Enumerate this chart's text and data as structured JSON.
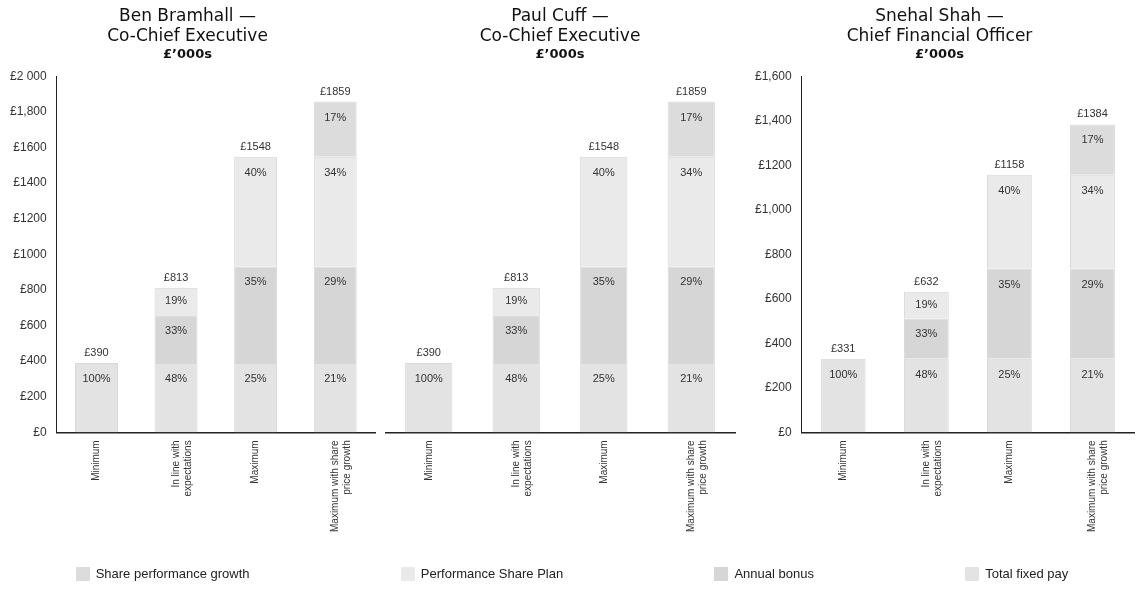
{
  "chart_data": [
    {
      "type": "bar",
      "title": "Ben Bramhall —\nCo-Chief Executive",
      "subtitle": "£’000s",
      "stacked": true,
      "grid": false,
      "legend": "bottom",
      "categories": [
        "Minimum",
        "In line with expectations",
        "Maximum",
        "Maximum with share price growth"
      ],
      "ylim": [
        0,
        2000
      ],
      "yticks": [
        {
          "value": 0,
          "label": "£0"
        },
        {
          "value": 200,
          "label": "£200"
        },
        {
          "value": 400,
          "label": "£400"
        },
        {
          "value": 600,
          "label": "£600"
        },
        {
          "value": 800,
          "label": "£800"
        },
        {
          "value": 1000,
          "label": "£1000"
        },
        {
          "value": 1200,
          "label": "£1200"
        },
        {
          "value": 1400,
          "label": "£1400"
        },
        {
          "value": 1600,
          "label": "£1600"
        },
        {
          "value": 1800,
          "label": "£1,800"
        },
        {
          "value": 2000,
          "label": "£2 000"
        }
      ],
      "series": [
        {
          "name": "Total fixed pay",
          "color": "#e3e3e3",
          "values": [
            390,
            390,
            390,
            390
          ]
        },
        {
          "name": "Annual bonus",
          "color": "#d6d6d6",
          "values": [
            null,
            268,
            542,
            542
          ]
        },
        {
          "name": "Performance Share Plan",
          "color": "#eaeaea",
          "values": [
            null,
            155,
            616,
            616
          ]
        },
        {
          "name": "Share performance growth",
          "color": "#dcdcdc",
          "values": [
            null,
            null,
            null,
            311
          ]
        }
      ],
      "totals": [
        "£390",
        "£813",
        "£1548",
        "£1859"
      ],
      "annotations": [
        {
          "text": "100%",
          "x": "Minimum",
          "y": 390
        },
        {
          "text": "48%",
          "x": "In line with expectations",
          "y": 390
        },
        {
          "text": "33%",
          "x": "In line with expectations",
          "y": 658
        },
        {
          "text": "19%",
          "x": "In line with expectations",
          "y": 813
        },
        {
          "text": "25%",
          "x": "Maximum",
          "y": 390
        },
        {
          "text": "35%",
          "x": "Maximum",
          "y": 932
        },
        {
          "text": "40%",
          "x": "Maximum",
          "y": 1548
        },
        {
          "text": "21%",
          "x": "Maximum with share price growth",
          "y": 390
        },
        {
          "text": "29%",
          "x": "Maximum with share price growth",
          "y": 932
        },
        {
          "text": "34%",
          "x": "Maximum with share price growth",
          "y": 1548
        },
        {
          "text": "17%",
          "x": "Maximum with share price growth",
          "y": 1859
        }
      ]
    },
    {
      "type": "bar",
      "title": "Paul Cuff —\nCo-Chief Executive",
      "subtitle": "£’000s",
      "stacked": true,
      "grid": false,
      "tick_labels": "x",
      "categories": [
        "Minimum",
        "In line with expectations",
        "Maximum",
        "Maximum with share price growth"
      ],
      "ylim": [
        0,
        2000
      ],
      "series": [
        {
          "color": "#e3e3e3",
          "values": [
            390,
            390,
            390,
            390
          ]
        },
        {
          "color": "#d6d6d6",
          "values": [
            null,
            268,
            542,
            542
          ]
        },
        {
          "color": "#eaeaea",
          "values": [
            null,
            155,
            616,
            616
          ]
        },
        {
          "color": "#dcdcdc",
          "values": [
            null,
            null,
            null,
            311
          ]
        }
      ],
      "totals": [
        "£390",
        "£813",
        "£1548",
        "£1859"
      ],
      "annotations": [
        {
          "text": "100%",
          "x": "Minimum",
          "y": 390
        },
        {
          "text": "48%",
          "x": "In line with expectations",
          "y": 390
        },
        {
          "text": "33%",
          "x": "In line with expectations",
          "y": 658
        },
        {
          "text": "19%",
          "x": "In line with expectations",
          "y": 813
        },
        {
          "text": "25%",
          "x": "Maximum",
          "y": 390
        },
        {
          "text": "35%",
          "x": "Maximum",
          "y": 932
        },
        {
          "text": "40%",
          "x": "Maximum",
          "y": 1548
        },
        {
          "text": "21%",
          "x": "Maximum with share price growth",
          "y": 390
        },
        {
          "text": "29%",
          "x": "Maximum with share price growth",
          "y": 932
        },
        {
          "text": "34%",
          "x": "Maximum with share price growth",
          "y": 1548
        },
        {
          "text": "17%",
          "x": "Maximum with share price growth",
          "y": 1859
        }
      ]
    },
    {
      "type": "bar",
      "title": "Snehal Shah —\nChief Financial Officer",
      "subtitle": "£’000s",
      "stacked": true,
      "grid": false,
      "categories": [
        "Minimum",
        "In line with expectations",
        "Maximum",
        "Maximum with share price growth"
      ],
      "ylim": [
        0,
        1600
      ],
      "yticks": [
        {
          "value": 0,
          "label": "£0"
        },
        {
          "value": 200,
          "label": "£200"
        },
        {
          "value": 400,
          "label": "£400"
        },
        {
          "value": 600,
          "label": "£600"
        },
        {
          "value": 800,
          "label": "£800"
        },
        {
          "value": 1000,
          "label": "£1,000"
        },
        {
          "value": 1200,
          "label": "£1200"
        },
        {
          "value": 1400,
          "label": "£1,400"
        },
        {
          "value": 1600,
          "label": "£1,600"
        }
      ],
      "series": [
        {
          "color": "#e3e3e3",
          "values": [
            331,
            331,
            331,
            331
          ]
        },
        {
          "color": "#d6d6d6",
          "values": [
            null,
            181,
            405,
            405
          ]
        },
        {
          "color": "#eaeaea",
          "values": [
            null,
            120,
            422,
            422
          ]
        },
        {
          "color": "#dcdcdc",
          "values": [
            null,
            null,
            null,
            226
          ]
        }
      ],
      "totals": [
        "£331",
        "£632",
        "£1158",
        "£1384"
      ],
      "annotations": [
        {
          "text": "100%",
          "x": "Minimum",
          "y": 331
        },
        {
          "text": "48%",
          "x": "In line with expectations",
          "y": 331
        },
        {
          "text": "33%",
          "x": "In line with expectations",
          "y": 512
        },
        {
          "text": "19%",
          "x": "In line with expectations",
          "y": 632
        },
        {
          "text": "25%",
          "x": "Maximum",
          "y": 331
        },
        {
          "text": "35%",
          "x": "Maximum",
          "y": 736
        },
        {
          "text": "40%",
          "x": "Maximum",
          "y": 1158
        },
        {
          "text": "21%",
          "x": "Maximum with share price growth",
          "y": 331
        },
        {
          "text": "29%",
          "x": "Maximum with share price growth",
          "y": 736
        },
        {
          "text": "34%",
          "x": "Maximum with share price growth",
          "y": 1158
        },
        {
          "text": "17%",
          "x": "Maximum with share price growth",
          "y": 1384
        }
      ]
    }
  ]
}
